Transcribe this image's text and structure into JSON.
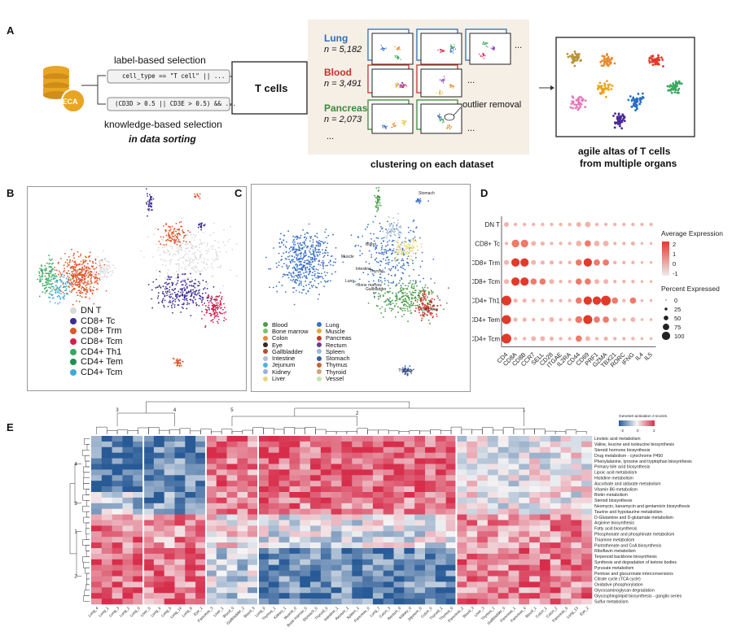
{
  "panelA": {
    "letter": "A",
    "db_label": "hECA",
    "label_based": "label-based selection",
    "label_code": "cell_type == \"T cell\" || ...",
    "knowledge_code": "(CD3D > 0.5 || CD3E > 0.5) && ...",
    "knowledge_based": "knowledge-based selection",
    "in_data_sorting": "in data sorting",
    "tcells": "T cells",
    "organs": [
      {
        "name": "Lung",
        "n": "n = 5,182",
        "color": "#2a6fb5"
      },
      {
        "name": "Blood",
        "n": "n = 3,491",
        "color": "#c8302c"
      },
      {
        "name": "Pancreas",
        "n": "n = 2,073",
        "color": "#3a8a3a"
      }
    ],
    "ellipsis": "...",
    "outlier": "outlier removal",
    "clustering": "clustering on each dataset",
    "atlas_line1": "agile altas of T cells",
    "atlas_line2": "from multiple organs"
  },
  "panelB": {
    "letter": "B",
    "legend": [
      {
        "label": "DN T",
        "color": "#d9d9d9"
      },
      {
        "label": "CD8+ Tc",
        "color": "#3b2a98"
      },
      {
        "label": "CD8+ Trm",
        "color": "#e0562a"
      },
      {
        "label": "CD8+ Tcm",
        "color": "#d6204c"
      },
      {
        "label": "CD4+ Th1",
        "color": "#3aa860"
      },
      {
        "label": "CD4+ Tem",
        "color": "#1f8f4e"
      },
      {
        "label": "CD4+ Tcm",
        "color": "#3fa9d5"
      }
    ]
  },
  "panelC": {
    "letter": "C",
    "legend_left": [
      {
        "label": "Blood",
        "color": "#4a9a47"
      },
      {
        "label": "Bone marrow",
        "color": "#7fbf6a"
      },
      {
        "label": "Colon",
        "color": "#e88a3a"
      },
      {
        "label": "Eye",
        "color": "#2a2a2a"
      },
      {
        "label": "Gallbladder",
        "color": "#b0502a"
      },
      {
        "label": "Intestine",
        "color": "#aac0d9"
      },
      {
        "label": "Jejunum",
        "color": "#4fb3d9"
      },
      {
        "label": "Kidney",
        "color": "#9ab0e0"
      },
      {
        "label": "Liver",
        "color": "#e6d77a"
      }
    ],
    "legend_right": [
      {
        "label": "Lung",
        "color": "#3a6fc4"
      },
      {
        "label": "Muscle",
        "color": "#e3a93a"
      },
      {
        "label": "Pancreas",
        "color": "#c43a2a"
      },
      {
        "label": "Rectum",
        "color": "#6a3a9a"
      },
      {
        "label": "Spleen",
        "color": "#9ab8e0"
      },
      {
        "label": "Stomach",
        "color": "#3a5aa8"
      },
      {
        "label": "Thymus",
        "color": "#c4663a"
      },
      {
        "label": "Thyroid",
        "color": "#d8a070"
      },
      {
        "label": "Vessel",
        "color": "#c8e0b0"
      }
    ],
    "annotations": [
      "Stomach",
      "Muscle",
      "Intestine",
      "Lung",
      "Bone marrow",
      "Pancreas",
      "Thymus",
      "Blood",
      "Gallbladder",
      "Thyroid"
    ]
  },
  "panelD": {
    "letter": "D",
    "rows": [
      "DN T",
      "CD8+ Tc",
      "CD8+ Trm",
      "CD8+ Tcm",
      "CD4+ Th1",
      "CD4+ Tem",
      "CD4+ Tcm"
    ],
    "genes": [
      "CD4",
      "CD8A",
      "CD8B",
      "CCR7",
      "SELL",
      "CD28",
      "ITGAE",
      "IL2RA",
      "CD44",
      "CD69",
      "PRF1",
      "GZMA",
      "TBX21",
      "RORC",
      "IFNG",
      "IL4",
      "IL5"
    ],
    "expression_title": "Average Expression",
    "expression_ticks": [
      "2",
      "1",
      "0",
      "-1"
    ],
    "percent_title": "Percent Expressed",
    "percent_ticks": [
      "0",
      "25",
      "50",
      "75",
      "100"
    ]
  },
  "panelE": {
    "letter": "E",
    "colorbar_title": "Geneset activation z-scores",
    "colorbar_ticks": [
      "-2",
      "0",
      "2"
    ],
    "column_clusters": [
      "3",
      "4",
      "5",
      "2",
      "1"
    ],
    "row_clusters": [
      "4",
      "3",
      "1",
      "2"
    ],
    "pathways": [
      "Linoleic acid metabolism",
      "Valine, leucine and isoleucine biosynthesis",
      "Steroid hormone biosynthesis",
      "Drug metabolism - cytochrome P450",
      "Phenylalanine, tyrosine and tryptophan biosynthesis",
      "Primary bile acid biosynthesis",
      "Lipoic acid metabolism",
      "Histidine metabolism",
      "Ascorbate and aldarate metabolism",
      "Vitamin B6 metabolism",
      "Biotin metabolism",
      "Steroid biosynthesis",
      "Neomycin, kanamycin and gentamicin biosynthesis",
      "Taurine and hypotaurine metabolism",
      "D-Glutamine and D-glutamate metabolism",
      "Arginine biosynthesis",
      "Fatty acid biosynthesis",
      "Phosphonate and phosphinate metabolism",
      "Thiamine metabolism",
      "Pantothenate and CoA biosynthesis",
      "Riboflavin metabolism",
      "Terpenoid backbone biosynthesis",
      "Synthesis and degradation of ketone bodies",
      "Pyruvate metabolism",
      "Pentose and glucuronate interconversions",
      "Citrate cycle (TCA cycle)",
      "Oxidative phosphorylation",
      "Glycosaminoglycan degradation",
      "Glycosphingolipid biosynthesis - ganglio series",
      "Sulfur metabolism"
    ],
    "columns": [
      "Lung_4",
      "Lung_1",
      "Lung_3",
      "Lung_2",
      "Lung_0",
      "Liver_0",
      "Lung_6",
      "Lung_5",
      "Lung_14",
      "Lung_8",
      "Eye_1",
      "Pancreas_3",
      "Liver_1",
      "Blood_0",
      "Gallbladder_2",
      "Blood_5",
      "Lung_9",
      "Thymus_1",
      "Kidney_1",
      "Muscle_0",
      "Bone marrow_0",
      "Stomach_0",
      "Thyroid_0",
      "Intestine_1",
      "Rectum_1",
      "Spleen_1",
      "Pancreas_0",
      "Lung_7",
      "Colon_3",
      "Rectum_0",
      "Kidney_0",
      "Jejunum_0",
      "Colon_0",
      "Thyroid_1",
      "Thymus_0",
      "Pancreas_2",
      "Blood_3",
      "Liver_3",
      "Thymus_2",
      "Gallbladder_0",
      "Pancreas_1",
      "Pancreas_4",
      "Blood_1",
      "Colon_1",
      "Colon_2",
      "Pancreas_5",
      "Lung_13",
      "Eye_2"
    ]
  }
}
